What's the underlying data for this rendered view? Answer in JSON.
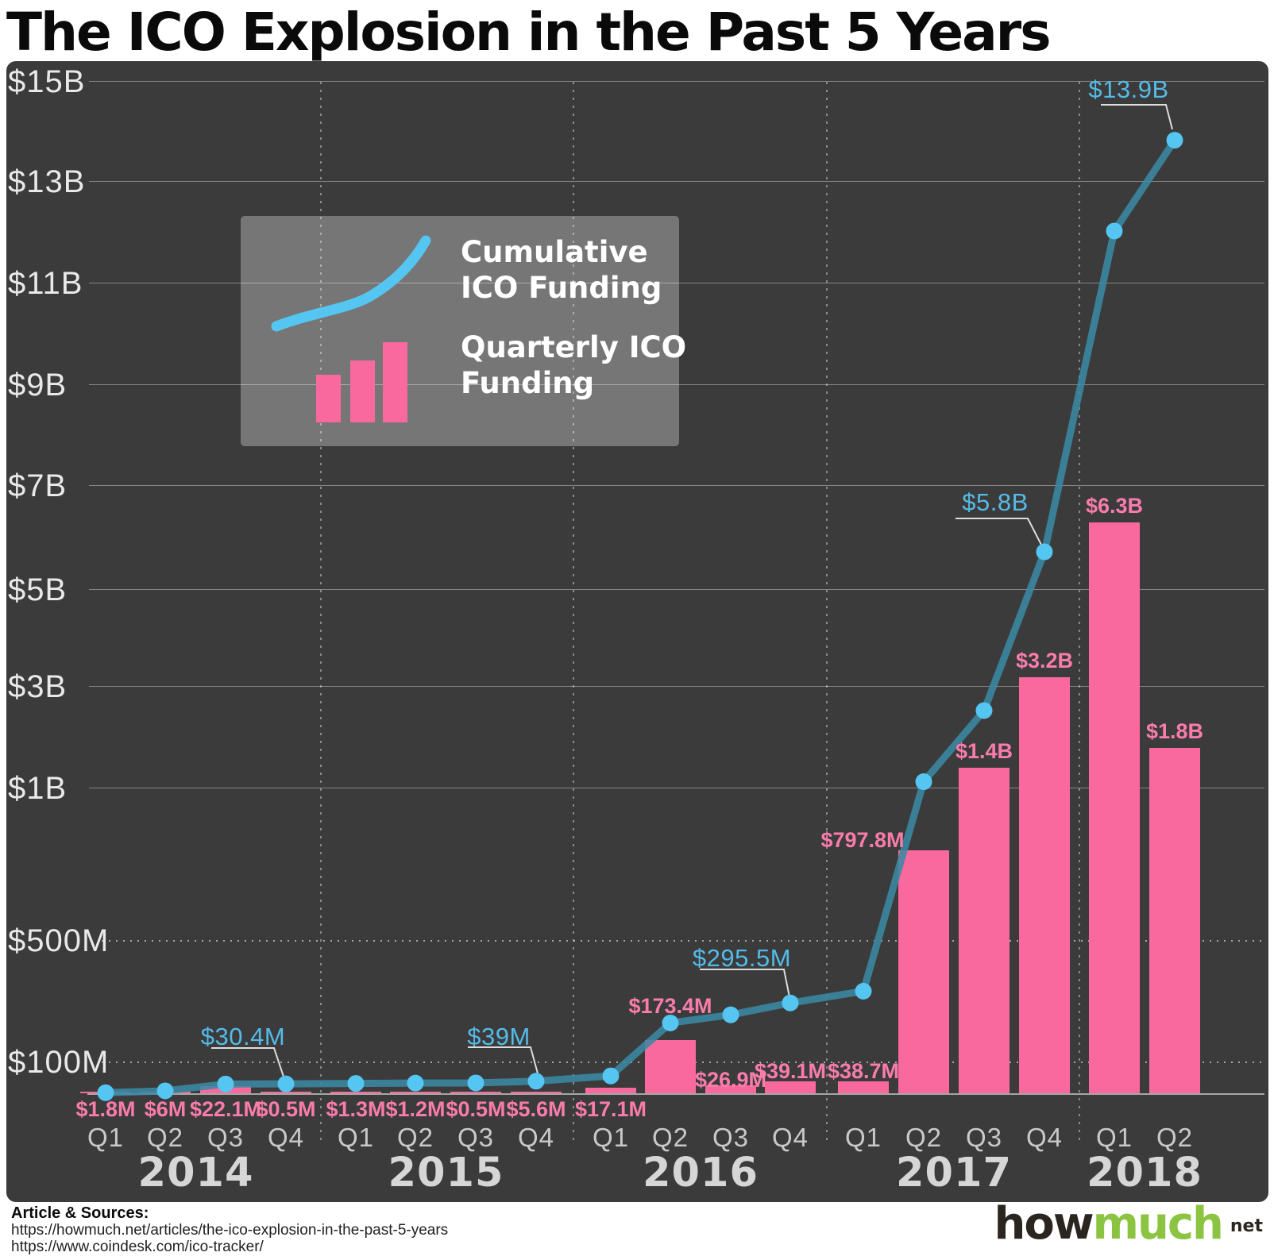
{
  "header": {
    "title": "The ICO Explosion in the Past 5 Years"
  },
  "legend": {
    "line_label": "Cumulative ICO Funding",
    "bar_label": "Quarterly ICO Funding"
  },
  "colors": {
    "chart_background": "#3b3b3b",
    "bar_pink": "#f9699e",
    "bar_label_pink": "#fa7cab",
    "line_teal": "#3a89a3",
    "dot_blue": "#55c5f1",
    "callout_blue": "#54bbe8",
    "axis_text": "#e9e9e9",
    "quarter_text": "#c9c9c9",
    "year_text": "#d6d6d6",
    "logo_green": "#8bc441",
    "logo_dark": "#2b2520"
  },
  "y_axis": {
    "ticks": [
      {
        "label": "$15B",
        "value_musd": 15000,
        "style": "solid"
      },
      {
        "label": "$13B",
        "value_musd": 13000,
        "style": "solid"
      },
      {
        "label": "$11B",
        "value_musd": 11000,
        "style": "solid"
      },
      {
        "label": "$9B",
        "value_musd": 9000,
        "style": "solid"
      },
      {
        "label": "$7B",
        "value_musd": 7000,
        "style": "solid"
      },
      {
        "label": "$5B",
        "value_musd": 5000,
        "style": "solid"
      },
      {
        "label": "$3B",
        "value_musd": 3000,
        "style": "solid"
      },
      {
        "label": "$1B",
        "value_musd": 1000,
        "style": "solid"
      },
      {
        "label": "$500M",
        "value_musd": 500,
        "style": "dotted"
      },
      {
        "label": "$100M",
        "value_musd": 100,
        "style": "dotted"
      }
    ]
  },
  "chart_data": {
    "type": "combo",
    "title": "The ICO Explosion in the Past 5 Years",
    "grid": "horizontal gridlines solid $1B-$15B, dotted $100M/$500M; dotted vertical year separators",
    "legend_position": "upper-left box",
    "ylim_musd": [
      0,
      15000
    ],
    "y_scale": "piecewise: linear 2B steps above $1B, compressed segments at $500M/$100M",
    "categories": [
      {
        "year": "2014",
        "quarters": [
          "Q1",
          "Q2",
          "Q3",
          "Q4"
        ]
      },
      {
        "year": "2015",
        "quarters": [
          "Q1",
          "Q2",
          "Q3",
          "Q4"
        ]
      },
      {
        "year": "2016",
        "quarters": [
          "Q1",
          "Q2",
          "Q3",
          "Q4"
        ]
      },
      {
        "year": "2017",
        "quarters": [
          "Q1",
          "Q2",
          "Q3",
          "Q4"
        ]
      },
      {
        "year": "2018",
        "quarters": [
          "Q1",
          "Q2"
        ]
      }
    ],
    "series": [
      {
        "name": "Quarterly ICO Funding",
        "type": "bar",
        "color": "#f9699e",
        "values_musd": [
          1.8,
          6,
          22.1,
          0.5,
          1.3,
          1.2,
          0.5,
          5.6,
          17.1,
          173.4,
          26.9,
          39.1,
          38.7,
          797.8,
          1400,
          3200,
          6300,
          1800
        ],
        "labels": [
          "$1.8M",
          "$6M",
          "$22.1M",
          "$0.5M",
          "$1.3M",
          "$1.2M",
          "$0.5M",
          "$5.6M",
          "$17.1M",
          "$173.4M",
          "$26.9M",
          "$39.1M",
          "$38.7M",
          "$797.8M",
          "$1.4B",
          "$3.2B",
          "$6.3B",
          "$1.8B"
        ]
      },
      {
        "name": "Cumulative ICO Funding",
        "type": "line",
        "color": "#3a89a3",
        "point_color": "#55c5f1",
        "values_musd": [
          1.8,
          7.8,
          29.9,
          30.4,
          31.7,
          32.9,
          33.4,
          39,
          56.1,
          229.5,
          256.4,
          295.5,
          334.2,
          1132,
          2532,
          5732,
          12032,
          13832
        ],
        "callouts": [
          {
            "index": 3,
            "label": "$30.4M"
          },
          {
            "index": 7,
            "label": "$39M"
          },
          {
            "index": 11,
            "label": "$295.5M"
          },
          {
            "index": 15,
            "label": "$5.8B"
          },
          {
            "index": 17,
            "label": "$13.9B"
          }
        ]
      }
    ]
  },
  "footer": {
    "sources_heading": "Article & Sources:",
    "sources": [
      "https://howmuch.net/articles/the-ico-explosion-in-the-past-5-years",
      "https://www.coindesk.com/ico-tracker/"
    ],
    "logo": {
      "part1": "how",
      "part2": "much",
      "suffix": "net"
    }
  }
}
